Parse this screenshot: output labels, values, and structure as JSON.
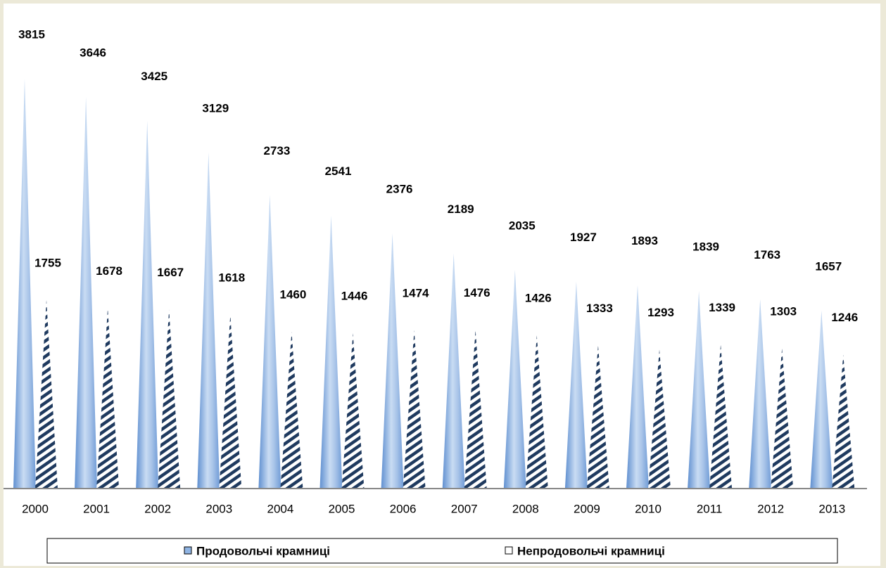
{
  "chart_data": {
    "type": "cone",
    "categories": [
      "2000",
      "2001",
      "2002",
      "2003",
      "2004",
      "2005",
      "2006",
      "2007",
      "2008",
      "2009",
      "2010",
      "2011",
      "2012",
      "2013"
    ],
    "series": [
      {
        "name": "Продовольчі крамниці",
        "color": "#8fb4e3",
        "values": [
          3815,
          3646,
          3425,
          3129,
          2733,
          2541,
          2376,
          2189,
          2035,
          1927,
          1893,
          1839,
          1763,
          1657
        ]
      },
      {
        "name": "Непродовольчі крамниці",
        "color": "#1f3a5f",
        "values": [
          1755,
          1678,
          1667,
          1618,
          1460,
          1446,
          1474,
          1476,
          1426,
          1333,
          1293,
          1339,
          1303,
          1246
        ]
      }
    ],
    "legend": "bottom"
  }
}
